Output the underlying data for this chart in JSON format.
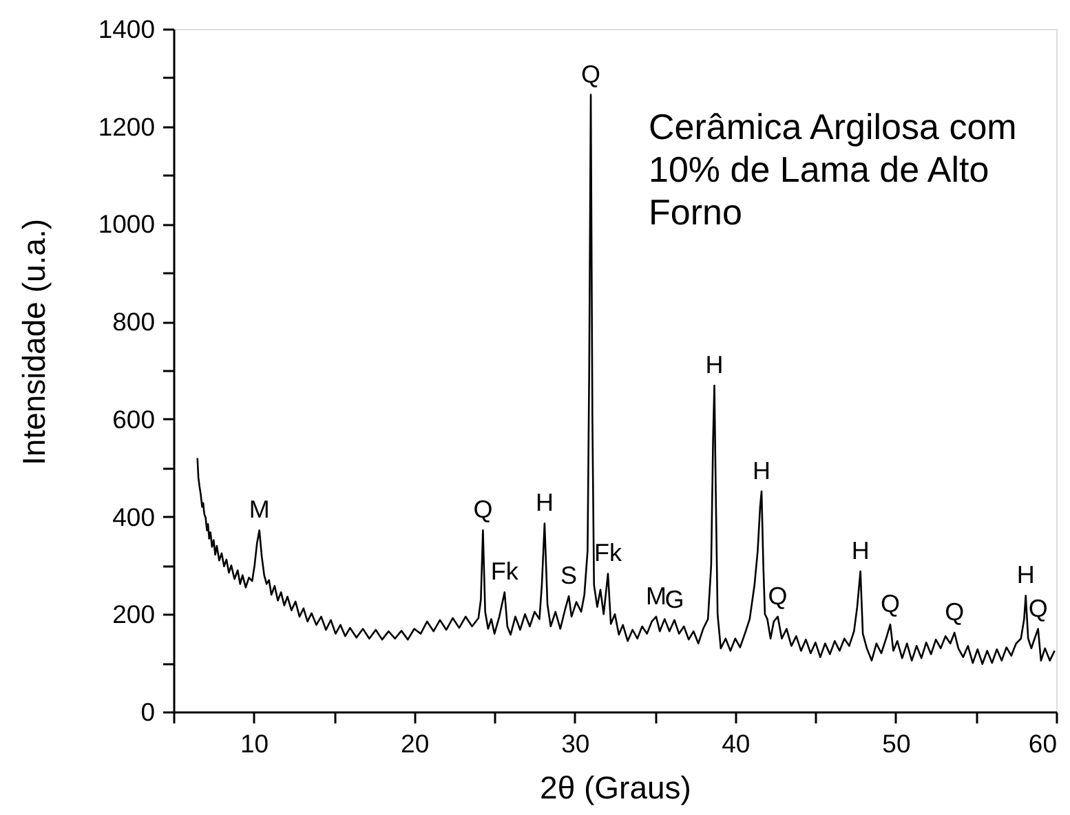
{
  "chart_data": {
    "type": "line",
    "xlabel": "2θ (Graus)",
    "ylabel": "Intensidade (u.a.)",
    "xlim": [
      5,
      60
    ],
    "ylim": [
      0,
      1400
    ],
    "xticks": [
      {
        "value": 5,
        "label": null
      },
      10,
      {
        "value": 15,
        "label": null
      },
      20,
      {
        "value": 25,
        "label": null
      },
      30,
      {
        "value": 35,
        "label": null
      },
      40,
      {
        "value": 45,
        "label": null
      },
      50,
      {
        "value": 55,
        "label": null
      },
      60
    ],
    "yticks": [
      0,
      {
        "value": 100,
        "label": null
      },
      200,
      {
        "value": 300,
        "label": null
      },
      400,
      {
        "value": 500,
        "label": null
      },
      600,
      {
        "value": 700,
        "label": null
      },
      800,
      {
        "value": 900,
        "label": null
      },
      1000,
      {
        "value": 1100,
        "label": null
      },
      1200,
      {
        "value": 1300,
        "label": null
      },
      1400
    ],
    "x": [
      6.49,
      6.55,
      6.62,
      6.7,
      6.78,
      6.85,
      6.92,
      7.0,
      7.08,
      7.15,
      7.22,
      7.3,
      7.4,
      7.5,
      7.6,
      7.7,
      7.85,
      8.0,
      8.15,
      8.3,
      8.45,
      8.6,
      8.8,
      9.0,
      9.15,
      9.3,
      9.5,
      9.7,
      9.9,
      10.05,
      10.2,
      10.35,
      10.5,
      10.65,
      10.8,
      10.95,
      11.1,
      11.3,
      11.5,
      11.7,
      11.9,
      12.1,
      12.35,
      12.6,
      12.85,
      13.1,
      13.35,
      13.6,
      13.9,
      14.2,
      14.5,
      14.8,
      15.1,
      15.4,
      15.7,
      16.0,
      16.4,
      16.8,
      17.2,
      17.6,
      18.0,
      18.4,
      18.8,
      19.2,
      19.6,
      20.0,
      20.4,
      20.8,
      21.2,
      21.6,
      22.0,
      22.4,
      22.8,
      23.2,
      23.6,
      24.0,
      24.15,
      24.28,
      24.42,
      24.6,
      24.8,
      25.0,
      25.3,
      25.63,
      25.8,
      26.0,
      26.3,
      26.6,
      26.9,
      27.2,
      27.5,
      27.8,
      27.95,
      28.12,
      28.3,
      28.5,
      28.8,
      29.1,
      29.4,
      29.63,
      29.8,
      30.1,
      30.4,
      30.6,
      30.8,
      30.9,
      31.0,
      31.1,
      31.2,
      31.4,
      31.6,
      31.8,
      32.07,
      32.25,
      32.5,
      32.75,
      33.0,
      33.3,
      33.6,
      33.9,
      34.2,
      34.5,
      34.8,
      35.07,
      35.3,
      35.6,
      35.9,
      36.21,
      36.5,
      36.8,
      37.1,
      37.4,
      37.7,
      38.0,
      38.3,
      38.5,
      38.62,
      38.7,
      38.8,
      38.9,
      39.1,
      39.4,
      39.7,
      40.0,
      40.3,
      40.6,
      40.9,
      41.2,
      41.4,
      41.55,
      41.64,
      41.75,
      41.85,
      42.0,
      42.2,
      42.4,
      42.65,
      42.9,
      43.2,
      43.5,
      43.8,
      44.1,
      44.4,
      44.7,
      45.0,
      45.3,
      45.6,
      45.9,
      46.2,
      46.5,
      46.8,
      47.1,
      47.4,
      47.6,
      47.8,
      47.95,
      48.2,
      48.5,
      48.8,
      49.1,
      49.4,
      49.66,
      49.85,
      50.1,
      50.4,
      50.7,
      51.0,
      51.3,
      51.6,
      51.9,
      52.2,
      52.5,
      52.8,
      53.1,
      53.4,
      53.66,
      53.9,
      54.2,
      54.5,
      54.8,
      55.1,
      55.4,
      55.7,
      56.0,
      56.3,
      56.6,
      56.9,
      57.2,
      57.5,
      57.8,
      58.0,
      58.1,
      58.25,
      58.45,
      58.6,
      58.87,
      59.05,
      59.3,
      59.6,
      59.9
    ],
    "series": [
      {
        "color": "#000000",
        "values": [
          520,
          480,
          462,
          445,
          420,
          428,
          405,
          398,
          372,
          385,
          355,
          368,
          338,
          352,
          322,
          340,
          310,
          325,
          298,
          312,
          285,
          300,
          272,
          290,
          262,
          280,
          255,
          275,
          268,
          300,
          345,
          372,
          318,
          280,
          262,
          270,
          240,
          258,
          228,
          245,
          218,
          236,
          208,
          226,
          195,
          212,
          185,
          202,
          178,
          195,
          168,
          188,
          160,
          178,
          155,
          172,
          152,
          170,
          150,
          168,
          148,
          165,
          150,
          166,
          148,
          170,
          160,
          185,
          165,
          188,
          168,
          192,
          172,
          195,
          175,
          192,
          230,
          372,
          205,
          170,
          190,
          160,
          195,
          245,
          175,
          158,
          195,
          168,
          200,
          175,
          205,
          190,
          260,
          386,
          220,
          175,
          205,
          170,
          210,
          237,
          195,
          225,
          205,
          240,
          330,
          700,
          1265,
          600,
          260,
          215,
          250,
          200,
          283,
          180,
          200,
          158,
          178,
          145,
          168,
          150,
          175,
          160,
          185,
          195,
          165,
          190,
          165,
          188,
          160,
          175,
          148,
          165,
          140,
          170,
          190,
          300,
          560,
          669,
          420,
          200,
          130,
          150,
          125,
          150,
          132,
          160,
          190,
          260,
          330,
          420,
          452,
          300,
          200,
          190,
          150,
          185,
          195,
          150,
          170,
          135,
          155,
          125,
          148,
          120,
          142,
          112,
          140,
          118,
          145,
          125,
          150,
          135,
          165,
          215,
          288,
          160,
          130,
          105,
          140,
          120,
          150,
          179,
          125,
          145,
          110,
          140,
          105,
          135,
          110,
          142,
          118,
          148,
          130,
          155,
          140,
          162,
          130,
          112,
          135,
          100,
          128,
          98,
          125,
          100,
          128,
          105,
          132,
          115,
          140,
          150,
          190,
          238,
          150,
          130,
          145,
          170,
          105,
          130,
          105,
          125
        ]
      }
    ],
    "annotations": [
      "Cerâmica Argilosa com\n10% de Lama de Alto\nForno",
      {
        "text": "M",
        "x": 10.35,
        "y": 372
      },
      {
        "text": "Q",
        "x": 24.28,
        "y": 372
      },
      {
        "text": "Fk",
        "x": 25.63,
        "y": 245
      },
      {
        "text": "H",
        "x": 28.12,
        "y": 386
      },
      {
        "text": "S",
        "x": 29.63,
        "y": 237
      },
      {
        "text": "Q",
        "x": 31.0,
        "y": 1265
      },
      {
        "text": "Fk",
        "x": 32.07,
        "y": 283
      },
      {
        "text": "M",
        "x": 35.07,
        "y": 195
      },
      {
        "text": "G",
        "x": 36.21,
        "y": 188
      },
      {
        "text": "H",
        "x": 38.7,
        "y": 669
      },
      {
        "text": "H",
        "x": 41.64,
        "y": 452
      },
      {
        "text": "Q",
        "x": 42.65,
        "y": 195
      },
      {
        "text": "H",
        "x": 47.8,
        "y": 288
      },
      {
        "text": "Q",
        "x": 49.66,
        "y": 179
      },
      {
        "text": "Q",
        "x": 53.66,
        "y": 162
      },
      {
        "text": "H",
        "x": 58.1,
        "y": 238
      },
      {
        "text": "Q",
        "x": 58.87,
        "y": 170
      }
    ]
  }
}
